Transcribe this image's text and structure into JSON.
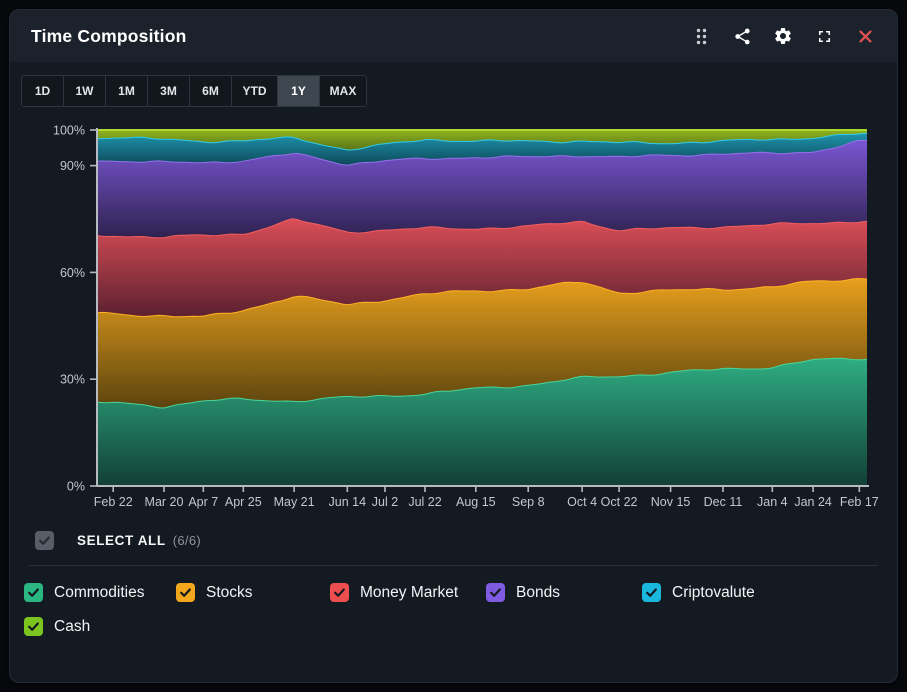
{
  "header": {
    "title": "Time Composition",
    "icons": [
      "drag-handle-icon",
      "share-icon",
      "settings-icon",
      "fullscreen-icon",
      "close-icon"
    ],
    "close_color": "#e0524f"
  },
  "range_buttons": {
    "options": [
      "1D",
      "1W",
      "1M",
      "3M",
      "6M",
      "YTD",
      "1Y",
      "MAX"
    ],
    "selected": "1Y"
  },
  "select_all": {
    "label": "SELECT ALL",
    "count": "(6/6)",
    "checked": true,
    "checkbox_color": "#575e67"
  },
  "legend": [
    {
      "label": "Commodities",
      "color": "#2bb784",
      "checked": true
    },
    {
      "label": "Stocks",
      "color": "#f2a71d",
      "checked": true
    },
    {
      "label": "Money Market",
      "color": "#ef4e4e",
      "checked": true
    },
    {
      "label": "Bonds",
      "color": "#7e5be0",
      "checked": true
    },
    {
      "label": "Criptovalute",
      "color": "#1ab8dc",
      "checked": true
    },
    {
      "label": "Cash",
      "color": "#7cc420",
      "checked": true
    }
  ],
  "chart_data": {
    "type": "area",
    "stacked_percent": true,
    "title": "Time Composition",
    "xlabel": "",
    "ylabel": "",
    "ylim": [
      0,
      100
    ],
    "grid": false,
    "yticks": {
      "labels": [
        "100%",
        "90%",
        "60%",
        "30%",
        "0%"
      ],
      "values": [
        100,
        90,
        60,
        30,
        0
      ]
    },
    "x": [
      "Feb 22",
      "Mar 20",
      "Apr 7",
      "Apr 25",
      "May 21",
      "Jun 14",
      "Jul 2",
      "Jul 22",
      "Aug 15",
      "Sep 8",
      "Oct 4",
      "Oct 22",
      "Nov 15",
      "Dec 11",
      "Jan 4",
      "Jan 24",
      "Feb 17"
    ],
    "tick_x": [
      0.021,
      0.087,
      0.138,
      0.19,
      0.256,
      0.325,
      0.374,
      0.426,
      0.492,
      0.56,
      0.63,
      0.678,
      0.745,
      0.813,
      0.877,
      0.93,
      0.99
    ],
    "axis_color": "#b7bbc1",
    "label_color": "#c3c7cd",
    "series": [
      {
        "name": "Commodities",
        "values": [
          23.5,
          22.5,
          24,
          24.5,
          24,
          25,
          25.5,
          26,
          27.5,
          28.5,
          30.5,
          31,
          32,
          33,
          33.5,
          35.5,
          36
        ],
        "fill_top": "#2fae83",
        "fill_bottom": "#123f36",
        "stroke": "#49d598"
      },
      {
        "name": "Stocks",
        "values": [
          25,
          25.5,
          23.5,
          25,
          29.5,
          26,
          27,
          28,
          27.5,
          27,
          27,
          23.5,
          23,
          22.5,
          22.5,
          22,
          22.5
        ],
        "fill_top": "#e8a01d",
        "fill_bottom": "#5c440e",
        "stroke": "#ffb224"
      },
      {
        "name": "Money Market",
        "values": [
          22,
          22,
          23,
          21.5,
          21.5,
          20.5,
          19.5,
          18.5,
          17.5,
          17.5,
          17,
          17.5,
          17.5,
          17.5,
          17.5,
          16.5,
          16
        ],
        "fill_top": "#db4e57",
        "fill_bottom": "#5c2130",
        "stroke": "#f25e5e"
      },
      {
        "name": "Bonds",
        "values": [
          21,
          21,
          20.5,
          20.5,
          18.5,
          19,
          19.5,
          19.5,
          20,
          19.5,
          18.5,
          20.5,
          20.5,
          20.5,
          20,
          20,
          22.5
        ],
        "fill_top": "#7a57d4",
        "fill_bottom": "#2f2250",
        "stroke": "#9570ec"
      },
      {
        "name": "Criptovalute",
        "values": [
          6.5,
          6.5,
          6,
          5.5,
          4.5,
          4,
          4.5,
          5.5,
          4.5,
          4.5,
          4,
          4,
          3.5,
          3.5,
          4,
          4,
          2
        ],
        "fill_top": "#1f95ae",
        "fill_bottom": "#0d4a5a",
        "stroke": "#31cbe8"
      },
      {
        "name": "Cash",
        "values": [
          2,
          2.5,
          3,
          3,
          2,
          5.5,
          4,
          2.5,
          3,
          3,
          3,
          3.5,
          3.5,
          3,
          2.5,
          2,
          1
        ],
        "fill_top": "#8fb31f",
        "fill_bottom": "#5a7616",
        "stroke": "#abd92f"
      }
    ],
    "legend_position": "bottom"
  }
}
